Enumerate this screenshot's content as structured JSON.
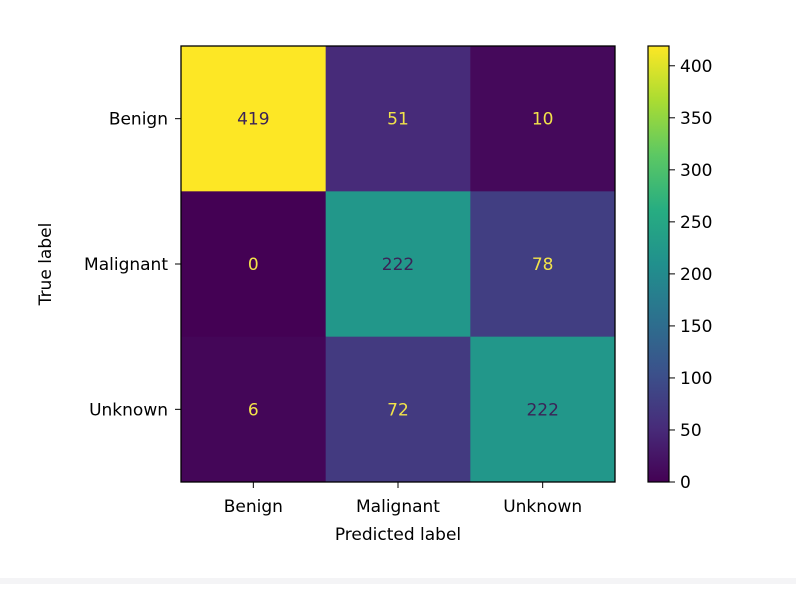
{
  "chart_data": {
    "type": "heatmap",
    "title": "",
    "xlabel": "Predicted label",
    "ylabel": "True label",
    "x_categories": [
      "Benign",
      "Malignant",
      "Unknown"
    ],
    "y_categories": [
      "Benign",
      "Malignant",
      "Unknown"
    ],
    "matrix": [
      [
        419,
        51,
        10
      ],
      [
        0,
        222,
        78
      ],
      [
        6,
        72,
        222
      ]
    ],
    "colormap": "viridis",
    "colorbar": {
      "min": 0,
      "max": 419,
      "ticks": [
        0,
        50,
        100,
        150,
        200,
        250,
        300,
        350,
        400
      ]
    }
  }
}
